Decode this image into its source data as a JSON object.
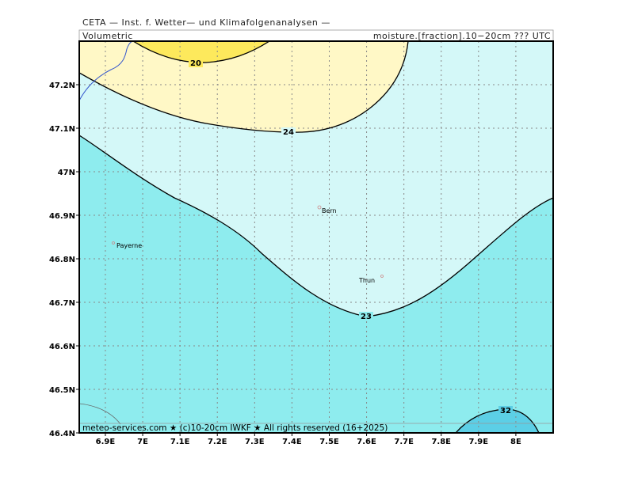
{
  "header": {
    "line1": "CETA — Inst. f. Wetter— und Klimafolgenanalysen —",
    "left": "Volumetric",
    "right": "moisture.[fraction].10−20cm ??? UTC"
  },
  "map": {
    "xlim": [
      6.83,
      8.1
    ],
    "ylim": [
      46.4,
      47.3
    ],
    "xticks": [
      {
        "value": 6.9,
        "label": "6.9E"
      },
      {
        "value": 7,
        "label": "7E"
      },
      {
        "value": 7.1,
        "label": "7.1E"
      },
      {
        "value": 7.2,
        "label": "7.2E"
      },
      {
        "value": 7.3,
        "label": "7.3E"
      },
      {
        "value": 7.4,
        "label": "7.4E"
      },
      {
        "value": 7.5,
        "label": "7.5E"
      },
      {
        "value": 7.6,
        "label": "7.6E"
      },
      {
        "value": 7.7,
        "label": "7.7E"
      },
      {
        "value": 7.8,
        "label": "7.8E"
      },
      {
        "value": 7.9,
        "label": "7.9E"
      },
      {
        "value": 8,
        "label": "8E"
      }
    ],
    "yticks": [
      {
        "value": 46.4,
        "label": "46.4N"
      },
      {
        "value": 46.5,
        "label": "46.5N"
      },
      {
        "value": 46.6,
        "label": "46.6N"
      },
      {
        "value": 46.7,
        "label": "46.7N"
      },
      {
        "value": 46.8,
        "label": "46.8N"
      },
      {
        "value": 46.9,
        "label": "46.9N"
      },
      {
        "value": 47,
        "label": "47N"
      },
      {
        "value": 47.1,
        "label": "47.1N"
      },
      {
        "value": 47.2,
        "label": "47.2N"
      }
    ],
    "grid": true,
    "contours": [
      {
        "level": 20
      },
      {
        "level": 24
      },
      {
        "level": 23
      },
      {
        "level": 32
      }
    ],
    "cities": [
      "Bern",
      "Payerne",
      "Thun"
    ],
    "footer": "meteo-services.com ★ (c)10-20cm IWKF ★ All rights reserved (16+2025)"
  }
}
